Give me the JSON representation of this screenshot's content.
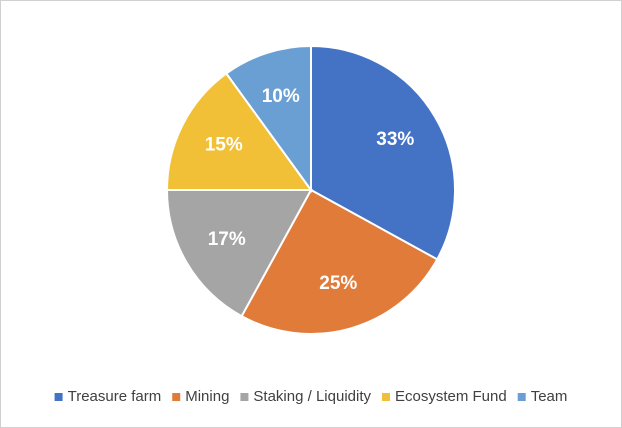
{
  "chart_data": {
    "type": "pie",
    "categories": [
      "Treasure farm",
      "Mining",
      "Staking / Liquidity",
      "Ecosystem Fund",
      "Team"
    ],
    "values": [
      33,
      25,
      17,
      15,
      10
    ],
    "value_labels": [
      "33%",
      "25%",
      "17%",
      "15%",
      "10%"
    ],
    "colors": [
      "#4472c4",
      "#e07b39",
      "#a5a5a5",
      "#f2c037",
      "#6a9fd4"
    ],
    "legend": "bottom"
  }
}
